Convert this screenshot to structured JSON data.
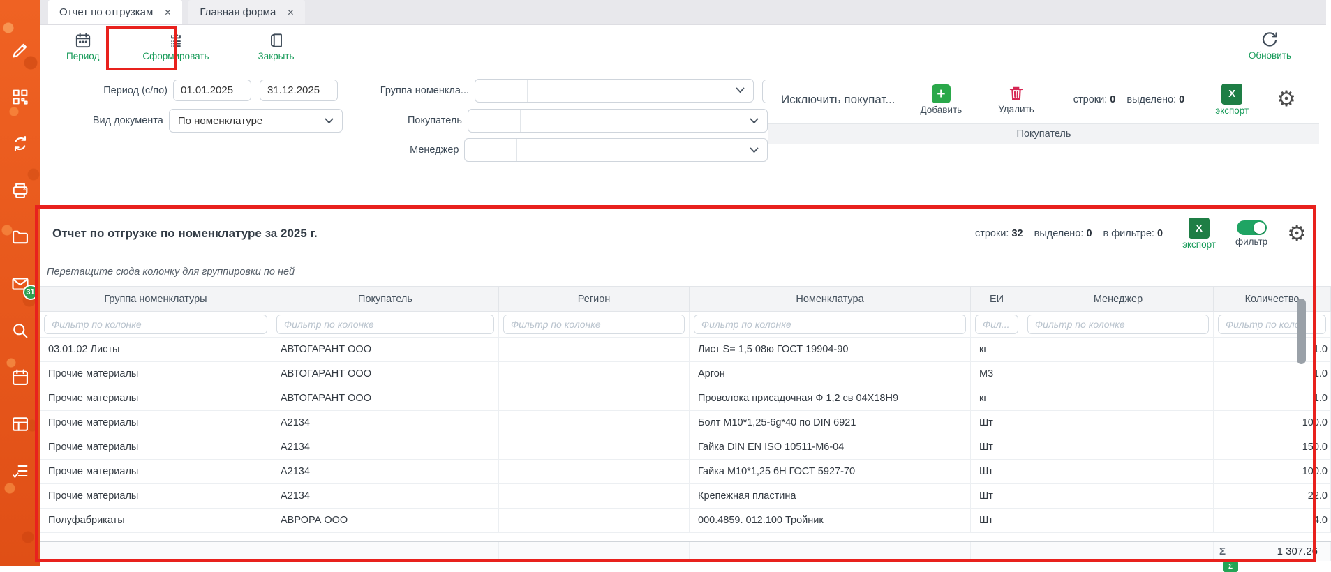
{
  "icons": {
    "close": "✕",
    "gear": "⚙",
    "plus": "+",
    "excel": "X",
    "sigma": "Σ"
  },
  "colors": {
    "sidebar_orange": "#e8541d",
    "accent_green": "#169a58",
    "annotation_red": "#e8211d",
    "excel_green": "#1e7e45",
    "danger_red": "#d62754",
    "toggle_green": "#1fa463"
  },
  "tabs": [
    {
      "label": "Отчет по отгрузкам"
    },
    {
      "label": "Главная форма"
    }
  ],
  "toolbar": {
    "period_label": "Период",
    "generate_label": "Сформировать",
    "close_label": "Закрыть",
    "refresh_label": "Обновить"
  },
  "filters": {
    "period_label": "Период (с/по)",
    "period_from": "01.01.2025",
    "period_to": "31.12.2025",
    "doc_type_label": "Вид документа",
    "doc_type_value": "По номенклатуре",
    "nom_group_label": "Группа номенкла...",
    "buyer_label": "Покупатель",
    "manager_label": "Менеджер"
  },
  "exclude_panel": {
    "title": "Исключить покупат...",
    "add_label": "Добавить",
    "delete_label": "Удалить",
    "rows_label": "строки:",
    "rows_value": "0",
    "selected_label": "выделено:",
    "selected_value": "0",
    "export_label": "экспорт",
    "column_header": "Покупатель"
  },
  "report": {
    "title": "Отчет по отгрузке по номенклатуре за 2025 г.",
    "rows_label": "строки:",
    "rows_value": "32",
    "selected_label": "выделено:",
    "selected_value": "0",
    "filtered_label": "в фильтре:",
    "filtered_value": "0",
    "export_label": "экспорт",
    "filter_toggle_label": "фильтр",
    "groupby_hint": "Перетащите сюда колонку для группировки по ней",
    "columns": [
      {
        "label": "Группа номенклатуры",
        "placeholder": "Фильтр по колонке"
      },
      {
        "label": "Покупатель",
        "placeholder": "Фильтр по колонке"
      },
      {
        "label": "Регион",
        "placeholder": "Фильтр по колонке"
      },
      {
        "label": "Номенклатура",
        "placeholder": "Фильтр по колонке"
      },
      {
        "label": "ЕИ",
        "placeholder": "Фил..."
      },
      {
        "label": "Менеджер",
        "placeholder": "Фильтр по колонке"
      },
      {
        "label": "Количество",
        "placeholder": "Фильтр по коло"
      }
    ],
    "rows": [
      [
        "03.01.02 Листы",
        "АВТОГАРАНТ ООО",
        "",
        "Лист S= 1,5 08ю ГОСТ 19904-90",
        "кг",
        "",
        "1.0"
      ],
      [
        "Прочие материалы",
        "АВТОГАРАНТ ООО",
        "",
        "Аргон",
        "М3",
        "",
        "1.0"
      ],
      [
        "Прочие материалы",
        "АВТОГАРАНТ ООО",
        "",
        "Проволока присадочная Ф 1,2 св 04Х18Н9",
        "кг",
        "",
        "1.0"
      ],
      [
        "Прочие материалы",
        "А2134",
        "",
        "Болт М10*1,25-6g*40 по DIN 6921",
        "Шт",
        "",
        "100.0"
      ],
      [
        "Прочие материалы",
        "А2134",
        "",
        "Гайка DIN EN ISO 10511-М6-04",
        "Шт",
        "",
        "150.0"
      ],
      [
        "Прочие материалы",
        "А2134",
        "",
        "Гайка М10*1,25 6Н ГОСТ 5927-70",
        "Шт",
        "",
        "100.0"
      ],
      [
        "Прочие материалы",
        "А2134",
        "",
        "Крепежная пластина",
        "Шт",
        "",
        "22.0"
      ],
      [
        "Полуфабрикаты",
        "АВРОРА ООО",
        "",
        "000.4859. 012.100 Тройник",
        "Шт",
        "",
        "4.0"
      ]
    ],
    "sum_symbol": "Σ",
    "sum_value": "1 307.26"
  },
  "sidebar": {
    "mail_badge": "31"
  }
}
